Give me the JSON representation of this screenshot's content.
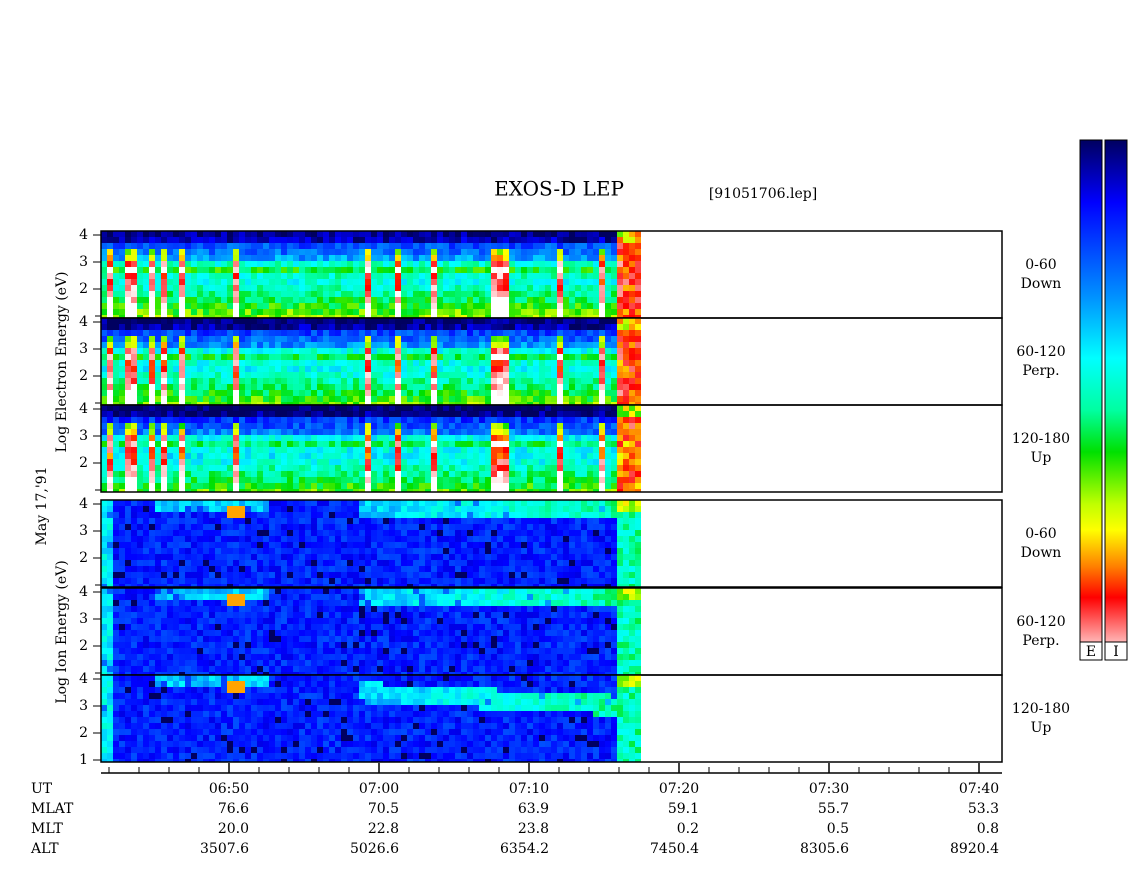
{
  "header": {
    "title": "EXOS-D LEP",
    "file": "[91051706.lep]"
  },
  "date": "May 17,'91",
  "electron_axis_label": "Log  Electron  Energy (eV)",
  "ion_axis_label": "Log  Ion  Energy (eV)",
  "panels": [
    {
      "species": "electron",
      "angle": "0-60",
      "direction": "Down",
      "yticks": [
        2,
        3,
        4
      ]
    },
    {
      "species": "electron",
      "angle": "60-120",
      "direction": "Perp.",
      "yticks": [
        2,
        3,
        4
      ]
    },
    {
      "species": "electron",
      "angle": "120-180",
      "direction": "Up",
      "yticks": [
        2,
        3,
        4
      ]
    },
    {
      "species": "ion",
      "angle": "0-60",
      "direction": "Down",
      "yticks": [
        2,
        3,
        4
      ]
    },
    {
      "species": "ion",
      "angle": "60-120",
      "direction": "Perp.",
      "yticks": [
        2,
        3,
        4
      ]
    },
    {
      "species": "ion",
      "angle": "120-180",
      "direction": "Up",
      "yticks": [
        1,
        2,
        3,
        4
      ]
    }
  ],
  "orbit": {
    "row_labels": [
      "UT",
      "MLAT",
      "MLT",
      "ALT"
    ],
    "columns": [
      [
        "06:50",
        "76.6",
        "20.0",
        "3507.6"
      ],
      [
        "07:00",
        "70.5",
        "22.8",
        "5026.6"
      ],
      [
        "07:10",
        "63.9",
        "23.8",
        "6354.2"
      ],
      [
        "07:20",
        "59.1",
        "0.2",
        "7450.4"
      ],
      [
        "07:30",
        "55.7",
        "0.5",
        "8305.6"
      ],
      [
        "07:40",
        "53.3",
        "0.8",
        "8920.4"
      ]
    ]
  },
  "colorbars": [
    "E",
    "I"
  ]
}
